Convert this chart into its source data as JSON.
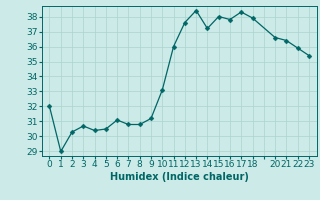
{
  "x": [
    0,
    1,
    2,
    3,
    4,
    5,
    6,
    7,
    8,
    9,
    10,
    11,
    12,
    13,
    14,
    15,
    16,
    17,
    18,
    20,
    21,
    22,
    23
  ],
  "y": [
    32,
    29,
    30.3,
    30.7,
    30.4,
    30.5,
    31.1,
    30.8,
    30.8,
    31.2,
    33.1,
    36.0,
    37.6,
    38.4,
    37.2,
    38.0,
    37.8,
    38.3,
    37.9,
    36.6,
    36.4,
    35.9,
    35.4
  ],
  "line_color": "#006666",
  "marker": "D",
  "marker_size": 2.5,
  "bg_color": "#cceae7",
  "grid_color": "#aad4d0",
  "xlabel": "Humidex (Indice chaleur)",
  "ylim": [
    29,
    38.5
  ],
  "yticks": [
    29,
    30,
    31,
    32,
    33,
    34,
    35,
    36,
    37,
    38
  ],
  "xtick_labels": [
    "0",
    "1",
    "2",
    "3",
    "4",
    "5",
    "6",
    "7",
    "8",
    "9",
    "10",
    "11",
    "12",
    "13",
    "14",
    "15",
    "16",
    "17",
    "18",
    "",
    "20",
    "21",
    "22",
    "23"
  ],
  "label_fontsize": 7,
  "tick_fontsize": 6.5
}
